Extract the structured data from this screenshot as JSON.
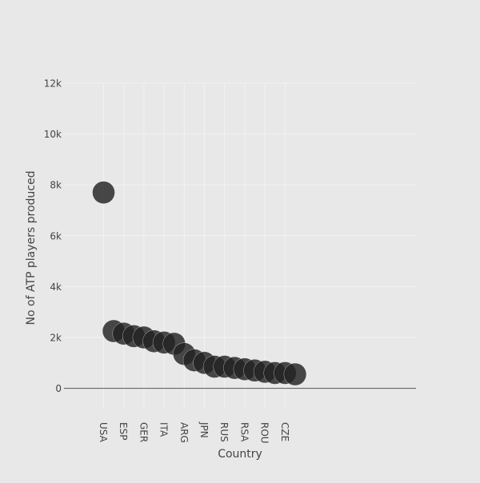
{
  "chart_data": {
    "type": "scatter",
    "title": "",
    "xlabel": "Country",
    "ylabel": "No of ATP players produced",
    "ylim": [
      -800,
      12000
    ],
    "yticks": [
      {
        "value": 0,
        "label": "0"
      },
      {
        "value": 2000,
        "label": "2k"
      },
      {
        "value": 4000,
        "label": "4k"
      },
      {
        "value": 6000,
        "label": "6k"
      },
      {
        "value": 8000,
        "label": "8k"
      },
      {
        "value": 10000,
        "label": "10k"
      },
      {
        "value": 12000,
        "label": "12k"
      }
    ],
    "x_tick_labels": [
      {
        "index": 0,
        "label": "USA"
      },
      {
        "index": 2,
        "label": "ESP"
      },
      {
        "index": 4,
        "label": "GER"
      },
      {
        "index": 6,
        "label": "ITA"
      },
      {
        "index": 8,
        "label": "ARG"
      },
      {
        "index": 10,
        "label": "JPN"
      },
      {
        "index": 12,
        "label": "RUS"
      },
      {
        "index": 14,
        "label": "RSA"
      },
      {
        "index": 16,
        "label": "ROU"
      },
      {
        "index": 18,
        "label": "CZE"
      }
    ],
    "grid": true,
    "marker_color": "#222222",
    "points": [
      {
        "index": 0,
        "label": "USA",
        "y": 7700
      },
      {
        "index": 1,
        "y": 2250
      },
      {
        "index": 2,
        "label": "ESP",
        "y": 2150
      },
      {
        "index": 3,
        "y": 2050
      },
      {
        "index": 4,
        "label": "GER",
        "y": 2000
      },
      {
        "index": 5,
        "y": 1850
      },
      {
        "index": 6,
        "label": "ITA",
        "y": 1800
      },
      {
        "index": 7,
        "y": 1750
      },
      {
        "index": 8,
        "label": "ARG",
        "y": 1350
      },
      {
        "index": 9,
        "y": 1100
      },
      {
        "index": 10,
        "label": "JPN",
        "y": 1000
      },
      {
        "index": 11,
        "y": 850
      },
      {
        "index": 12,
        "label": "RUS",
        "y": 850
      },
      {
        "index": 13,
        "y": 800
      },
      {
        "index": 14,
        "label": "RSA",
        "y": 750
      },
      {
        "index": 15,
        "y": 700
      },
      {
        "index": 16,
        "label": "ROU",
        "y": 650
      },
      {
        "index": 17,
        "y": 600
      },
      {
        "index": 18,
        "label": "CZE",
        "y": 600
      },
      {
        "index": 19,
        "y": 550
      }
    ]
  }
}
